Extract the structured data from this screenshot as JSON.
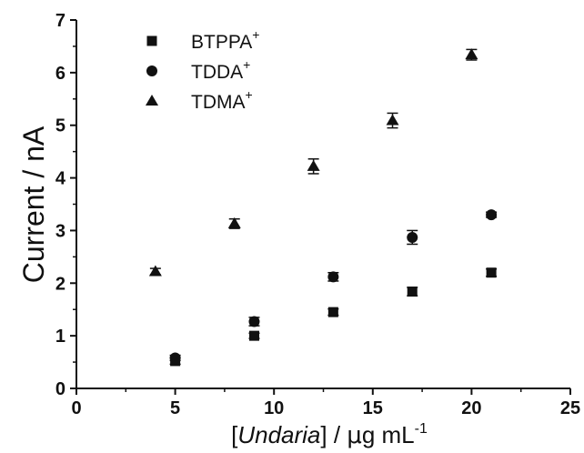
{
  "chart_data": {
    "type": "scatter",
    "title": "",
    "xlabel": {
      "open": "[",
      "italic": "Undaria",
      "close": "] / ",
      "mu": "μ",
      "rest": "g mL",
      "sup": "-1"
    },
    "ylabel": "Current / nA",
    "xlim": [
      0,
      25
    ],
    "ylim": [
      0,
      7
    ],
    "x_ticks": [
      "0",
      "5",
      "10",
      "15",
      "20",
      "25"
    ],
    "y_ticks": [
      "0",
      "1",
      "2",
      "3",
      "4",
      "5",
      "6",
      "7"
    ],
    "legend_position": "top-left",
    "grid": false,
    "series": [
      {
        "name": "BTPPA",
        "name_sup": "+",
        "marker": "square",
        "x": [
          5,
          9,
          13,
          17,
          21
        ],
        "y": [
          0.52,
          1.0,
          1.45,
          1.84,
          2.2
        ],
        "err": [
          0.06,
          0.05,
          0.06,
          0.08,
          0.07
        ]
      },
      {
        "name": "TDDA",
        "name_sup": "+",
        "marker": "circle",
        "x": [
          5,
          9,
          13,
          17,
          21
        ],
        "y": [
          0.58,
          1.27,
          2.12,
          2.87,
          3.3
        ],
        "err": [
          0.05,
          0.08,
          0.08,
          0.13,
          0.05
        ]
      },
      {
        "name": "TDMA",
        "name_sup": "+",
        "marker": "triangle",
        "x": [
          4,
          8,
          12,
          16,
          20
        ],
        "y": [
          2.22,
          3.13,
          4.22,
          5.09,
          6.34
        ],
        "err": [
          0.06,
          0.09,
          0.14,
          0.14,
          0.1
        ]
      }
    ]
  }
}
